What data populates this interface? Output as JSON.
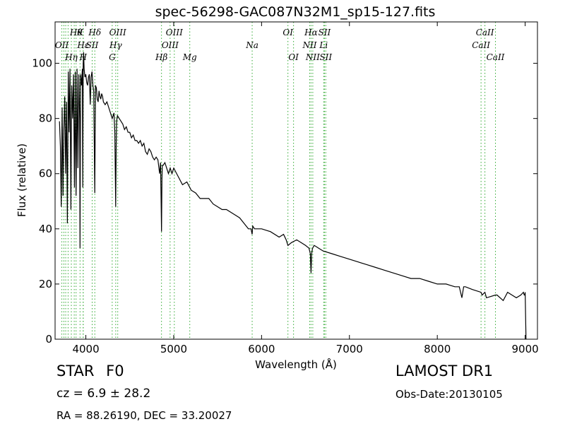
{
  "chart_data": {
    "type": "line",
    "title": "spec-56298-GAC087N32M1_sp15-127.fits",
    "xlabel": "Wavelength (Å)",
    "ylabel": "Flux (relative)",
    "xlim": [
      3650,
      9140
    ],
    "ylim": [
      0,
      115
    ],
    "xticks": [
      4000,
      5000,
      6000,
      7000,
      8000,
      9000
    ],
    "yticks": [
      0,
      20,
      40,
      60,
      80,
      100
    ],
    "grid": false,
    "series": [
      {
        "color": "#000000",
        "x": [
          3700,
          3710,
          3720,
          3730,
          3740,
          3750,
          3760,
          3770,
          3780,
          3790,
          3800,
          3810,
          3820,
          3830,
          3835,
          3840,
          3850,
          3860,
          3870,
          3880,
          3889,
          3895,
          3900,
          3910,
          3920,
          3930,
          3934,
          3940,
          3950,
          3960,
          3965,
          3970,
          3975,
          3980,
          3990,
          4000,
          4010,
          4020,
          4030,
          4040,
          4050,
          4060,
          4070,
          4080,
          4090,
          4102,
          4110,
          4120,
          4130,
          4140,
          4150,
          4160,
          4170,
          4180,
          4190,
          4200,
          4220,
          4240,
          4260,
          4280,
          4300,
          4320,
          4330,
          4340,
          4345,
          4350,
          4360,
          4380,
          4400,
          4420,
          4440,
          4460,
          4480,
          4500,
          4520,
          4540,
          4560,
          4580,
          4600,
          4620,
          4640,
          4660,
          4680,
          4700,
          4720,
          4740,
          4760,
          4780,
          4800,
          4820,
          4840,
          4850,
          4855,
          4861,
          4866,
          4870,
          4880,
          4900,
          4920,
          4940,
          4960,
          4980,
          5000,
          5050,
          5100,
          5150,
          5200,
          5250,
          5300,
          5350,
          5400,
          5450,
          5500,
          5550,
          5600,
          5650,
          5700,
          5750,
          5800,
          5850,
          5880,
          5893,
          5900,
          5920,
          6000,
          6100,
          6200,
          6250,
          6280,
          6300,
          6340,
          6400,
          6450,
          6500,
          6540,
          6555,
          6563,
          6570,
          6580,
          6600,
          6650,
          6700,
          6800,
          6900,
          7000,
          7100,
          7200,
          7300,
          7400,
          7500,
          7600,
          7700,
          7800,
          7900,
          8000,
          8100,
          8200,
          8250,
          8280,
          8300,
          8320,
          8400,
          8498,
          8510,
          8542,
          8560,
          8662,
          8680,
          8750,
          8800,
          8850,
          8900,
          8950,
          8980,
          8990,
          8995,
          9000,
          9010
        ],
        "values": [
          79,
          70,
          48,
          84,
          52,
          76,
          88,
          60,
          86,
          42,
          97,
          75,
          98,
          47,
          75,
          92,
          80,
          96,
          55,
          97,
          52,
          75,
          98,
          62,
          96,
          80,
          33,
          96,
          92,
          98,
          55,
          100,
          104,
          98,
          95,
          96,
          93,
          92,
          95,
          96,
          85,
          95,
          97,
          92,
          90,
          53,
          92,
          91,
          87,
          86,
          90,
          88,
          87,
          89,
          88,
          86,
          85,
          86,
          84,
          82,
          80,
          82,
          75,
          48,
          70,
          79,
          81,
          80,
          79,
          78,
          76,
          77,
          75,
          75,
          73,
          74,
          72,
          72,
          71,
          72,
          70,
          71,
          68,
          67,
          69,
          68,
          66,
          65,
          66,
          65,
          60,
          64,
          54,
          39,
          58,
          63,
          63,
          64,
          62,
          60,
          62,
          60,
          62,
          59,
          56,
          57,
          54,
          53,
          51,
          51,
          51,
          49,
          48,
          47,
          47,
          46,
          45,
          44,
          42,
          40,
          40,
          38,
          41,
          40,
          40,
          39,
          37,
          38,
          36,
          34,
          35,
          36,
          35,
          34,
          33,
          31,
          24,
          31,
          33,
          34,
          33,
          32,
          31,
          30,
          29,
          28,
          27,
          26,
          25,
          24,
          23,
          22,
          22,
          21,
          20,
          20,
          19,
          19,
          15,
          19,
          19,
          18,
          17,
          16,
          17,
          15,
          16,
          16,
          14,
          17,
          16,
          15,
          16,
          17,
          16,
          16,
          17,
          0
        ]
      }
    ],
    "lines": [
      {
        "x": 3727,
        "label": "OII",
        "row": 2
      },
      {
        "x": 3750,
        "label": "",
        "row": 0
      },
      {
        "x": 3771,
        "label": "",
        "row": 0
      },
      {
        "x": 3798,
        "label": "",
        "row": 0
      },
      {
        "x": 3835,
        "label": "Hη",
        "row": 3
      },
      {
        "x": 3868,
        "label": "",
        "row": 0
      },
      {
        "x": 3889,
        "label": "Hθ",
        "row": 1
      },
      {
        "x": 3934,
        "label": "K",
        "row": 1
      },
      {
        "x": 3970,
        "label": "Hε",
        "row": 2
      },
      {
        "x": 3970,
        "label": "H",
        "row": 3
      },
      {
        "x": 4072,
        "label": "SII",
        "row": 2
      },
      {
        "x": 4102,
        "label": "Hδ",
        "row": 1
      },
      {
        "x": 4300,
        "label": "G",
        "row": 3
      },
      {
        "x": 4340,
        "label": "Hγ",
        "row": 2
      },
      {
        "x": 4363,
        "label": "OIII",
        "row": 1
      },
      {
        "x": 4861,
        "label": "Hβ",
        "row": 3
      },
      {
        "x": 4959,
        "label": "OIII",
        "row": 2
      },
      {
        "x": 5007,
        "label": "OIII",
        "row": 1
      },
      {
        "x": 5183,
        "label": "Mg",
        "row": 3
      },
      {
        "x": 5893,
        "label": "Na",
        "row": 2
      },
      {
        "x": 6300,
        "label": "OI",
        "row": 1
      },
      {
        "x": 6364,
        "label": "OI",
        "row": 3
      },
      {
        "x": 6548,
        "label": "NII",
        "row": 2
      },
      {
        "x": 6563,
        "label": "Hα",
        "row": 1
      },
      {
        "x": 6583,
        "label": "NII",
        "row": 3
      },
      {
        "x": 6707,
        "label": "Li",
        "row": 2
      },
      {
        "x": 6716,
        "label": "SII",
        "row": 1
      },
      {
        "x": 6731,
        "label": "SII",
        "row": 3
      },
      {
        "x": 8498,
        "label": "CaII",
        "row": 2
      },
      {
        "x": 8542,
        "label": "CaII",
        "row": 1
      },
      {
        "x": 8662,
        "label": "CaII",
        "row": 3
      }
    ]
  },
  "info": {
    "class": "STAR",
    "subclass": "F0",
    "cz": "cz = 6.9 ± 28.2",
    "radec": "RA = 88.26190, DEC = 33.20027",
    "survey": "LAMOST DR1",
    "obsdate": "Obs-Date:20130105"
  }
}
